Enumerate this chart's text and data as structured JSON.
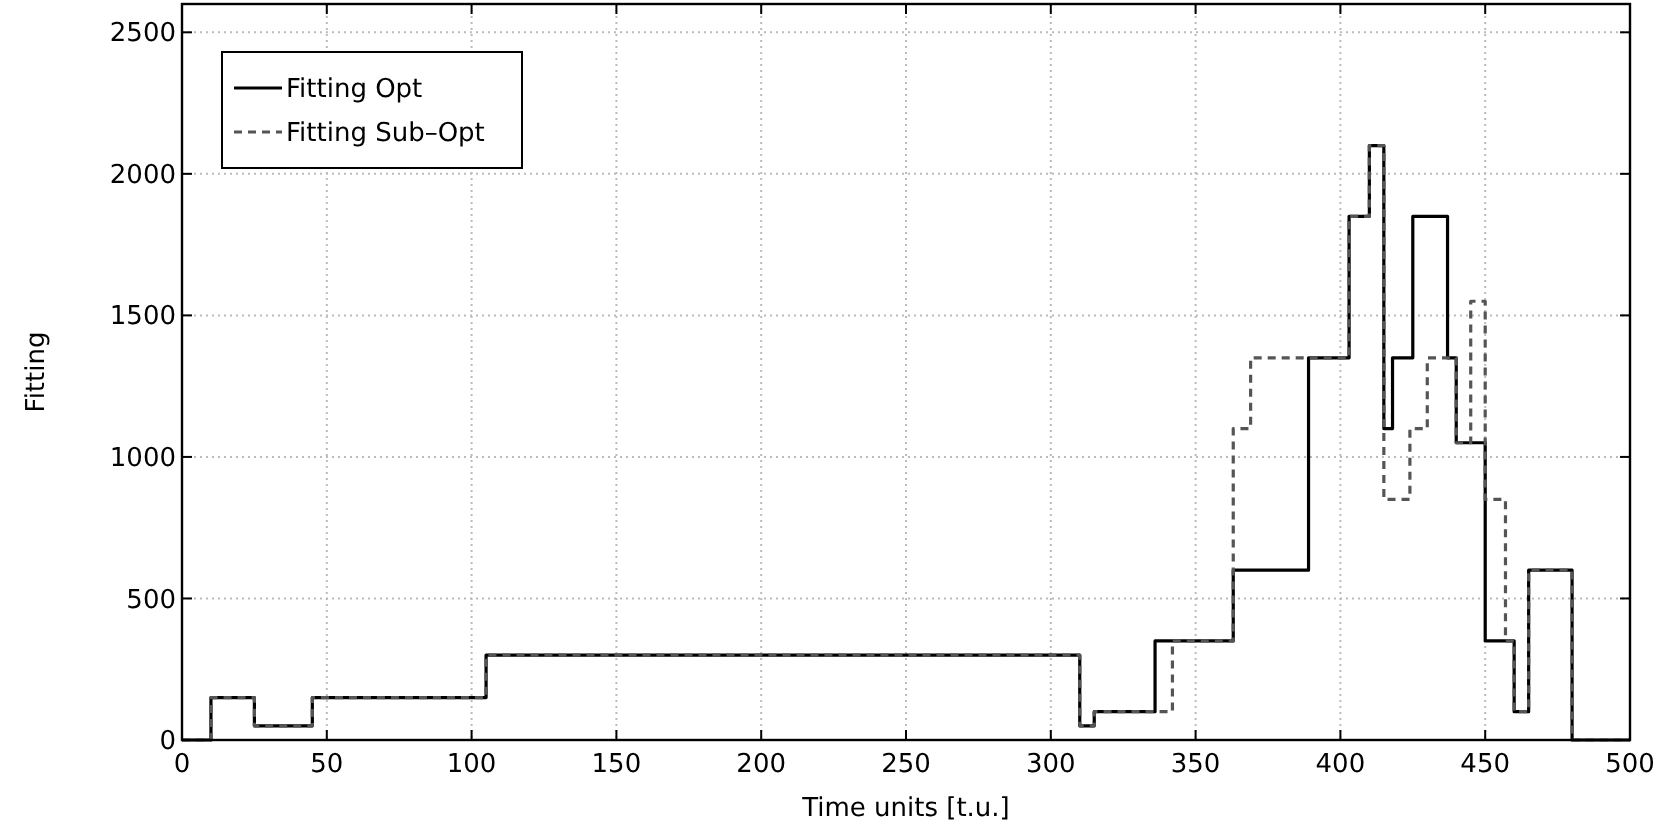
{
  "chart_data": {
    "type": "step",
    "xlabel": "Time units [t.u.]",
    "ylabel": "Fitting",
    "xlim": [
      0,
      500
    ],
    "ylim": [
      0,
      2600
    ],
    "xticks": [
      0,
      50,
      100,
      150,
      200,
      250,
      300,
      350,
      400,
      450,
      500
    ],
    "yticks": [
      0,
      500,
      1000,
      1500,
      2000,
      2500
    ],
    "grid": true,
    "legend": "top left",
    "series": [
      {
        "name": "Fitting Opt",
        "color": "#000000",
        "line_style": "solid",
        "x": [
          0,
          10,
          25,
          45,
          105,
          310,
          315,
          336,
          363,
          389,
          403,
          410,
          415,
          418,
          425,
          437,
          440,
          450,
          460,
          465,
          480,
          500
        ],
        "values": [
          0,
          150,
          50,
          150,
          300,
          50,
          100,
          350,
          600,
          1350,
          1850,
          2100,
          1100,
          1350,
          1850,
          1350,
          1050,
          350,
          100,
          600,
          0,
          0
        ]
      },
      {
        "name": "Fitting Sub–Opt",
        "color": "#555555",
        "line_style": "dashed",
        "x": [
          0,
          10,
          25,
          45,
          105,
          310,
          315,
          342,
          363,
          369,
          403,
          410,
          415,
          424,
          430,
          440,
          445,
          450,
          457,
          460,
          465,
          480,
          500
        ],
        "values": [
          0,
          150,
          50,
          150,
          300,
          50,
          100,
          350,
          1100,
          1350,
          1850,
          2100,
          850,
          1100,
          1350,
          1050,
          1550,
          850,
          350,
          100,
          600,
          0,
          0
        ]
      }
    ]
  }
}
